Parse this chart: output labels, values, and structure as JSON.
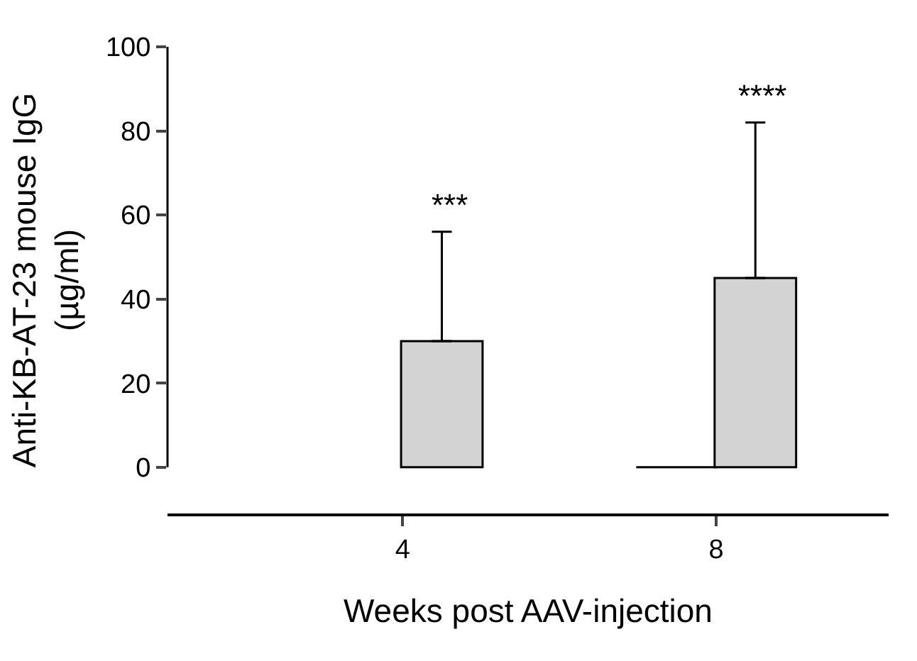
{
  "chart_data": {
    "type": "bar",
    "xlabel": "Weeks post AAV-injection",
    "ylabel": "Anti-KB-AT-23 mouse IgG\n(µg/ml)",
    "categories": [
      "4",
      "8"
    ],
    "series": [
      {
        "color": "#000000",
        "values": [
          null,
          0
        ]
      },
      {
        "color": "#d3d3d3",
        "values": [
          30,
          45
        ],
        "errors": [
          [
            30,
            56
          ],
          [
            45,
            82
          ]
        ]
      }
    ],
    "ylim": [
      -11,
      100
    ],
    "yticks": [
      0,
      20,
      40,
      60,
      80,
      100
    ],
    "legend": false,
    "annotations": [
      "***",
      "****"
    ]
  }
}
